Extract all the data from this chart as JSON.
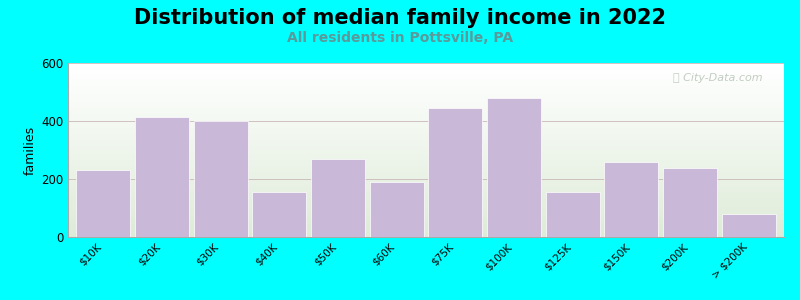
{
  "title": "Distribution of median family income in 2022",
  "subtitle": "All residents in Pottsville, PA",
  "ylabel": "families",
  "categories": [
    "$10K",
    "$20K",
    "$30K",
    "$40K",
    "$50K",
    "$60K",
    "$75K",
    "$100K",
    "$125K",
    "$150K",
    "$200K",
    "> $200K"
  ],
  "values": [
    230,
    415,
    400,
    155,
    270,
    190,
    445,
    480,
    155,
    258,
    238,
    80
  ],
  "bar_color": "#c9b8d8",
  "background_color": "#00ffff",
  "grad_top": "#deebd8",
  "grad_bottom": "#ffffff",
  "ylim": [
    0,
    600
  ],
  "yticks": [
    0,
    200,
    400,
    600
  ],
  "title_fontsize": 15,
  "subtitle_fontsize": 10,
  "subtitle_color": "#5a9a9a",
  "ylabel_fontsize": 9,
  "watermark_text": "City-Data.com",
  "watermark_color": "#b8c4b8",
  "tick_label_fontsize": 7.5,
  "tick_label_rotation": 45,
  "bar_width": 0.92
}
